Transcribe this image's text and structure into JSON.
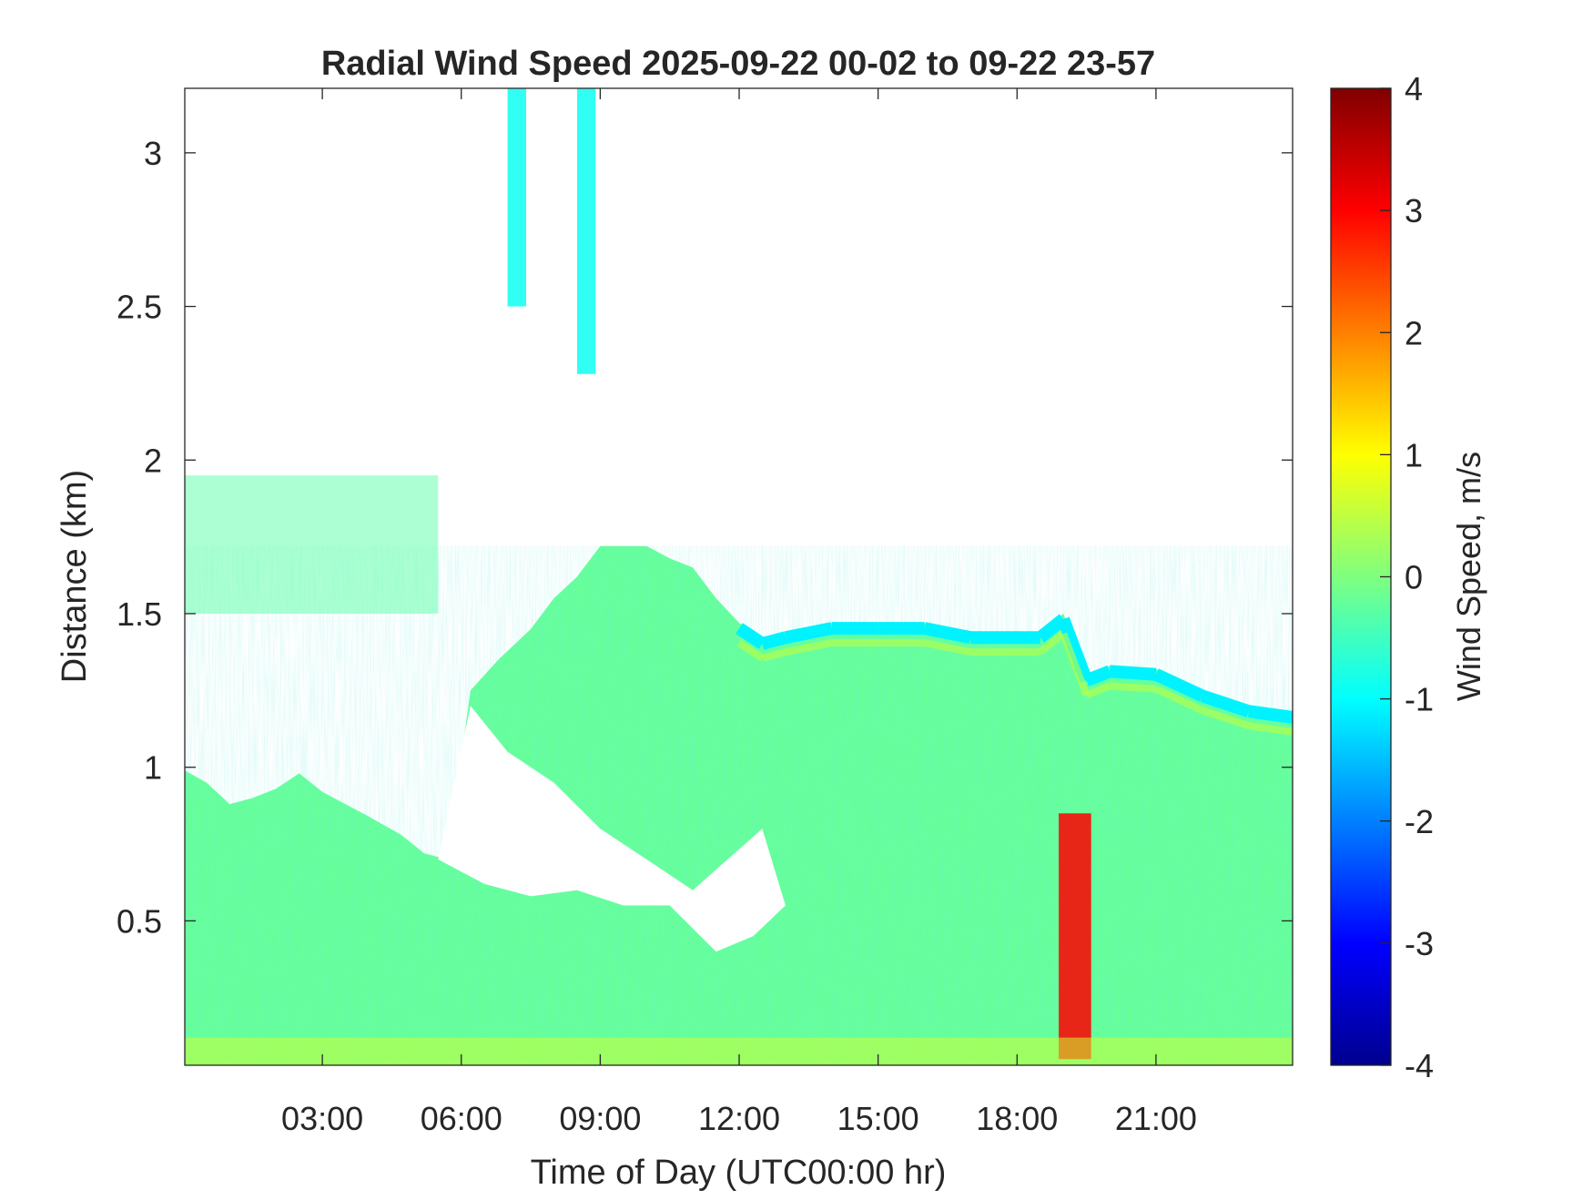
{
  "chart_data": {
    "type": "heatmap",
    "title": "Radial Wind Speed 2025-09-22 00-02 to 09-22 23-57",
    "xlabel": "Time of Day (UTC00:00 hr)",
    "ylabel": "Distance (km)",
    "colorbar_label": "Wind Speed, m/s",
    "colormap": "jet",
    "x_range_hours": [
      0.03,
      23.95
    ],
    "y_range_km": [
      0.03,
      3.21
    ],
    "x_ticks": [
      {
        "hour": 3,
        "label": "03:00"
      },
      {
        "hour": 6,
        "label": "06:00"
      },
      {
        "hour": 9,
        "label": "09:00"
      },
      {
        "hour": 12,
        "label": "12:00"
      },
      {
        "hour": 15,
        "label": "15:00"
      },
      {
        "hour": 18,
        "label": "18:00"
      },
      {
        "hour": 21,
        "label": "21:00"
      }
    ],
    "y_ticks": [
      {
        "km": 0.5,
        "label": "0.5"
      },
      {
        "km": 1,
        "label": "1"
      },
      {
        "km": 1.5,
        "label": "1.5"
      },
      {
        "km": 2,
        "label": "2"
      },
      {
        "km": 2.5,
        "label": "2.5"
      },
      {
        "km": 3,
        "label": "3"
      }
    ],
    "colorbar_range": [
      -4,
      4
    ],
    "colorbar_ticks": [
      {
        "value": 4,
        "label": "4"
      },
      {
        "value": 3,
        "label": "3"
      },
      {
        "value": 2,
        "label": "2"
      },
      {
        "value": 1,
        "label": "1"
      },
      {
        "value": 0,
        "label": "0"
      },
      {
        "value": -1,
        "label": "-1"
      },
      {
        "value": -2,
        "label": "-2"
      },
      {
        "value": -3,
        "label": "-3"
      },
      {
        "value": -4,
        "label": "-4"
      }
    ],
    "data_top_km": [
      {
        "hour": 0.03,
        "km": 0.99
      },
      {
        "hour": 0.5,
        "km": 0.95
      },
      {
        "hour": 1.0,
        "km": 0.88
      },
      {
        "hour": 1.5,
        "km": 0.9
      },
      {
        "hour": 2.0,
        "km": 0.93
      },
      {
        "hour": 2.5,
        "km": 0.98
      },
      {
        "hour": 3.0,
        "km": 0.92
      },
      {
        "hour": 3.5,
        "km": 0.88
      },
      {
        "hour": 4.0,
        "km": 0.84
      },
      {
        "hour": 4.7,
        "km": 0.78
      },
      {
        "hour": 5.2,
        "km": 0.72
      },
      {
        "hour": 5.7,
        "km": 0.7
      },
      {
        "hour": 6.2,
        "km": 1.25
      },
      {
        "hour": 6.8,
        "km": 1.35
      },
      {
        "hour": 7.5,
        "km": 1.45
      },
      {
        "hour": 8.0,
        "km": 1.55
      },
      {
        "hour": 8.5,
        "km": 1.62
      },
      {
        "hour": 9.0,
        "km": 1.72
      },
      {
        "hour": 10.0,
        "km": 1.72
      },
      {
        "hour": 10.5,
        "km": 1.68
      },
      {
        "hour": 11.0,
        "km": 1.65
      },
      {
        "hour": 11.5,
        "km": 1.55
      },
      {
        "hour": 12.0,
        "km": 1.47
      },
      {
        "hour": 12.5,
        "km": 1.42
      },
      {
        "hour": 13.0,
        "km": 1.44
      },
      {
        "hour": 14.0,
        "km": 1.47
      },
      {
        "hour": 15.0,
        "km": 1.47
      },
      {
        "hour": 16.0,
        "km": 1.47
      },
      {
        "hour": 17.0,
        "km": 1.44
      },
      {
        "hour": 18.5,
        "km": 1.44
      },
      {
        "hour": 19.0,
        "km": 1.5
      },
      {
        "hour": 19.5,
        "km": 1.3
      },
      {
        "hour": 20.0,
        "km": 1.33
      },
      {
        "hour": 21.0,
        "km": 1.32
      },
      {
        "hour": 22.0,
        "km": 1.25
      },
      {
        "hour": 23.0,
        "km": 1.2
      },
      {
        "hour": 23.95,
        "km": 1.18
      }
    ],
    "gap_region": {
      "description": "clear gap below upper layer",
      "points": [
        {
          "hour": 5.5,
          "km": 0.7
        },
        {
          "hour": 6.5,
          "km": 0.62
        },
        {
          "hour": 7.5,
          "km": 0.58
        },
        {
          "hour": 8.5,
          "km": 0.6
        },
        {
          "hour": 9.5,
          "km": 0.55
        },
        {
          "hour": 10.5,
          "km": 0.55
        },
        {
          "hour": 11.5,
          "km": 0.4
        },
        {
          "hour": 12.3,
          "km": 0.45
        },
        {
          "hour": 13.0,
          "km": 0.55
        },
        {
          "hour": 12.5,
          "km": 0.8
        },
        {
          "hour": 11.0,
          "km": 0.6
        },
        {
          "hour": 10.0,
          "km": 0.7
        },
        {
          "hour": 9.0,
          "km": 0.8
        },
        {
          "hour": 8.0,
          "km": 0.95
        },
        {
          "hour": 7.0,
          "km": 1.05
        },
        {
          "hour": 6.2,
          "km": 1.2
        }
      ]
    },
    "features": [
      {
        "name": "residual-layer-early",
        "hour_range": [
          0.03,
          5.5
        ],
        "km_range": [
          1.5,
          1.95
        ],
        "value_ms": -0.3
      },
      {
        "name": "plume-1",
        "hour_range": [
          7.0,
          7.4
        ],
        "km_range": [
          2.5,
          3.21
        ],
        "value_ms": -0.9
      },
      {
        "name": "plume-2",
        "hour_range": [
          8.5,
          8.9
        ],
        "km_range": [
          2.28,
          3.21
        ],
        "value_ms": -0.9
      },
      {
        "name": "updraft-19h",
        "hour_range": [
          18.9,
          19.6
        ],
        "km_range": [
          0.05,
          0.85
        ],
        "value_ms": 3.0
      }
    ]
  }
}
